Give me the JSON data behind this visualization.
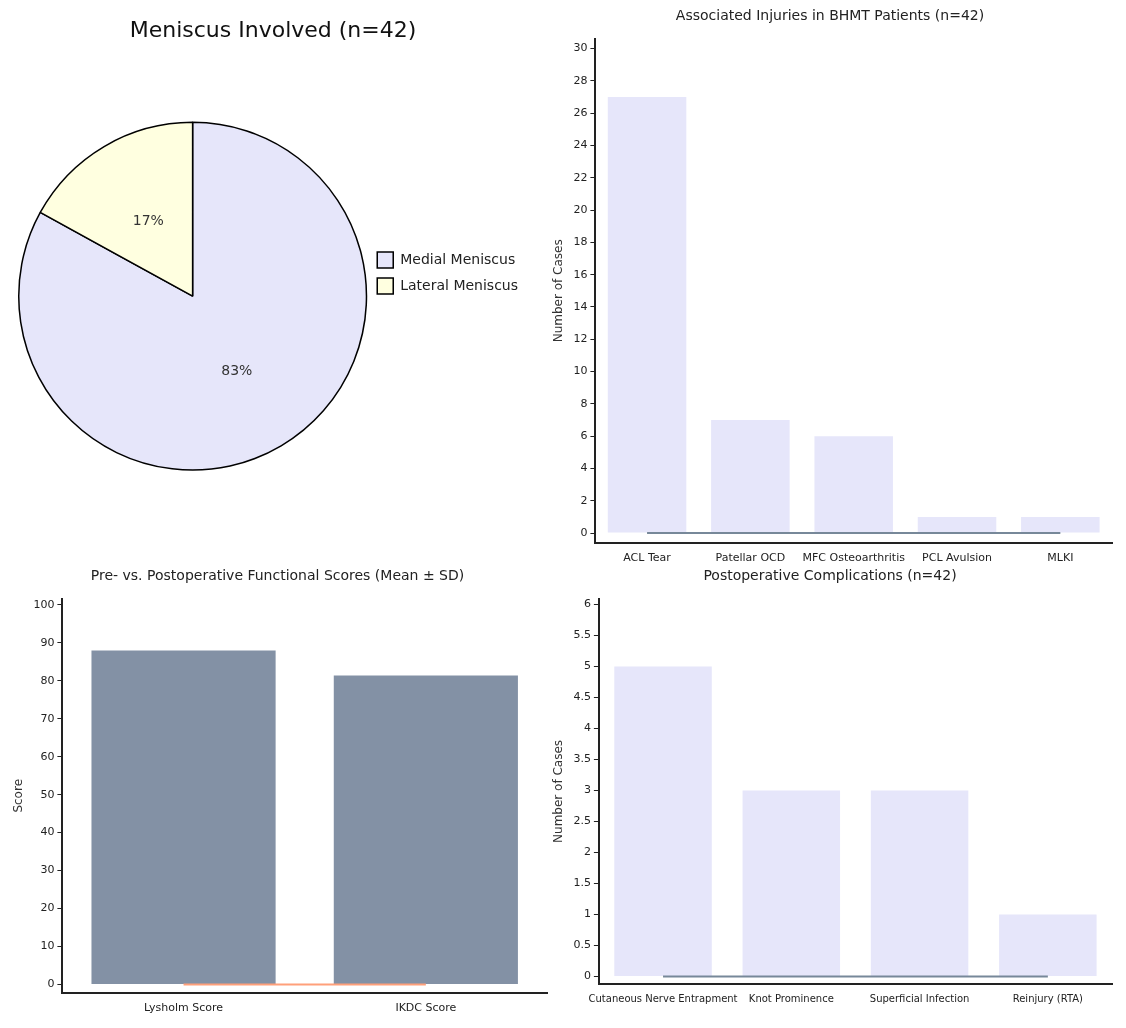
{
  "chart_data": [
    {
      "type": "pie",
      "title": "Meniscus Involved (n=42)",
      "categories": [
        "Medial Meniscus",
        "Lateral Meniscus"
      ],
      "values": [
        83,
        17
      ],
      "colors": [
        "#e6e6fa",
        "#ffffe0"
      ],
      "legend": "right",
      "value_labels": [
        "83%",
        "17%"
      ]
    },
    {
      "type": "bar",
      "title": "Associated Injuries in BHMT Patients (n=42)",
      "ylabel": "Number of Cases",
      "categories": [
        "ACL Tear",
        "Patellar OCD",
        "MFC Osteoarthritis",
        "PCL Avulsion",
        "MLKI"
      ],
      "series": [
        {
          "color": "#e6e6fa",
          "values": [
            27,
            7,
            6,
            1,
            1
          ]
        },
        {
          "type": "line",
          "color": "#778899",
          "values": [
            0,
            0,
            0,
            0,
            0
          ]
        }
      ],
      "ylim": [
        -0.6,
        30.6
      ],
      "yticks": [
        0,
        2,
        4,
        6,
        8,
        10,
        12,
        14,
        16,
        18,
        20,
        22,
        24,
        26,
        28,
        30
      ],
      "grid": false,
      "legend": false
    },
    {
      "type": "bar",
      "title": "Pre- vs. Postoperative Functional Scores (Mean ± SD)",
      "ylabel": "Score",
      "categories": [
        "Lysholm Score",
        "IKDC Score"
      ],
      "series": [
        {
          "color": "#8391a5",
          "values": [
            88,
            81.4
          ]
        },
        {
          "type": "line",
          "color": "#ffa07a",
          "values": [
            0,
            0
          ]
        }
      ],
      "ylim": [
        -2.2,
        101.6
      ],
      "yticks": [
        0,
        10,
        20,
        30,
        40,
        50,
        60,
        70,
        80,
        90,
        100
      ],
      "grid": false,
      "legend": false
    },
    {
      "type": "bar",
      "title": "Postoperative Complications (n=42)",
      "ylabel": "Number of Cases",
      "categories": [
        "Cutaneous Nerve Entrapment",
        "Knot Prominence",
        "Superficial Infection",
        "Reinjury (RTA)"
      ],
      "series": [
        {
          "color": "#e6e6fa",
          "values": [
            5,
            3,
            3,
            1
          ]
        },
        {
          "type": "line",
          "color": "#778899",
          "values": [
            0,
            0,
            0,
            0
          ]
        }
      ],
      "ylim": [
        -0.12,
        6.09
      ],
      "yticks": [
        0,
        0.5,
        1,
        1.5,
        2,
        2.5,
        3,
        3.5,
        4,
        4.5,
        5,
        5.5,
        6
      ],
      "grid": false,
      "legend": false
    }
  ]
}
